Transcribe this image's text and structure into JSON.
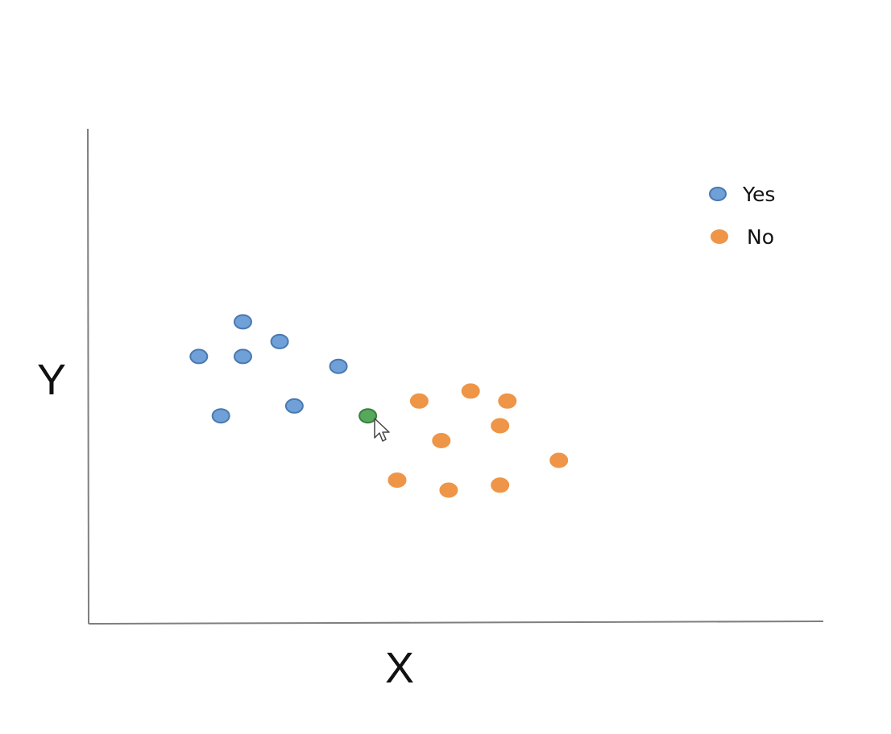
{
  "chart_data": {
    "type": "scatter",
    "title": "",
    "xlabel": "X",
    "ylabel": "Y",
    "xlim": [
      0,
      10
    ],
    "ylim": [
      0,
      10
    ],
    "grid": false,
    "ticks": false,
    "legend": {
      "placement": "top-right",
      "entries": [
        {
          "label": "Yes",
          "color": "#6fa0d8",
          "stroke": "#4a78b0"
        },
        {
          "label": "No",
          "color": "#ee9548",
          "stroke": "#ee9548"
        }
      ]
    },
    "series": [
      {
        "name": "Yes",
        "color": "#6fa0d8",
        "stroke": "#4a78b0",
        "points": [
          {
            "x": 2.1,
            "y": 5.4
          },
          {
            "x": 1.5,
            "y": 5.4
          },
          {
            "x": 2.1,
            "y": 6.1
          },
          {
            "x": 2.6,
            "y": 5.7
          },
          {
            "x": 3.4,
            "y": 5.2
          },
          {
            "x": 1.8,
            "y": 4.2
          },
          {
            "x": 2.8,
            "y": 4.4
          }
        ]
      },
      {
        "name": "No",
        "color": "#ee9548",
        "stroke": "#ee9548",
        "points": [
          {
            "x": 4.5,
            "y": 4.5
          },
          {
            "x": 5.2,
            "y": 4.7
          },
          {
            "x": 5.7,
            "y": 4.5
          },
          {
            "x": 5.6,
            "y": 4.0
          },
          {
            "x": 4.8,
            "y": 3.7
          },
          {
            "x": 6.4,
            "y": 3.3
          },
          {
            "x": 4.2,
            "y": 2.9
          },
          {
            "x": 4.9,
            "y": 2.7
          },
          {
            "x": 5.6,
            "y": 2.8
          }
        ]
      }
    ],
    "highlight": {
      "x": 3.8,
      "y": 4.2,
      "color": "#56a85a",
      "stroke": "#3a7e3e"
    }
  }
}
